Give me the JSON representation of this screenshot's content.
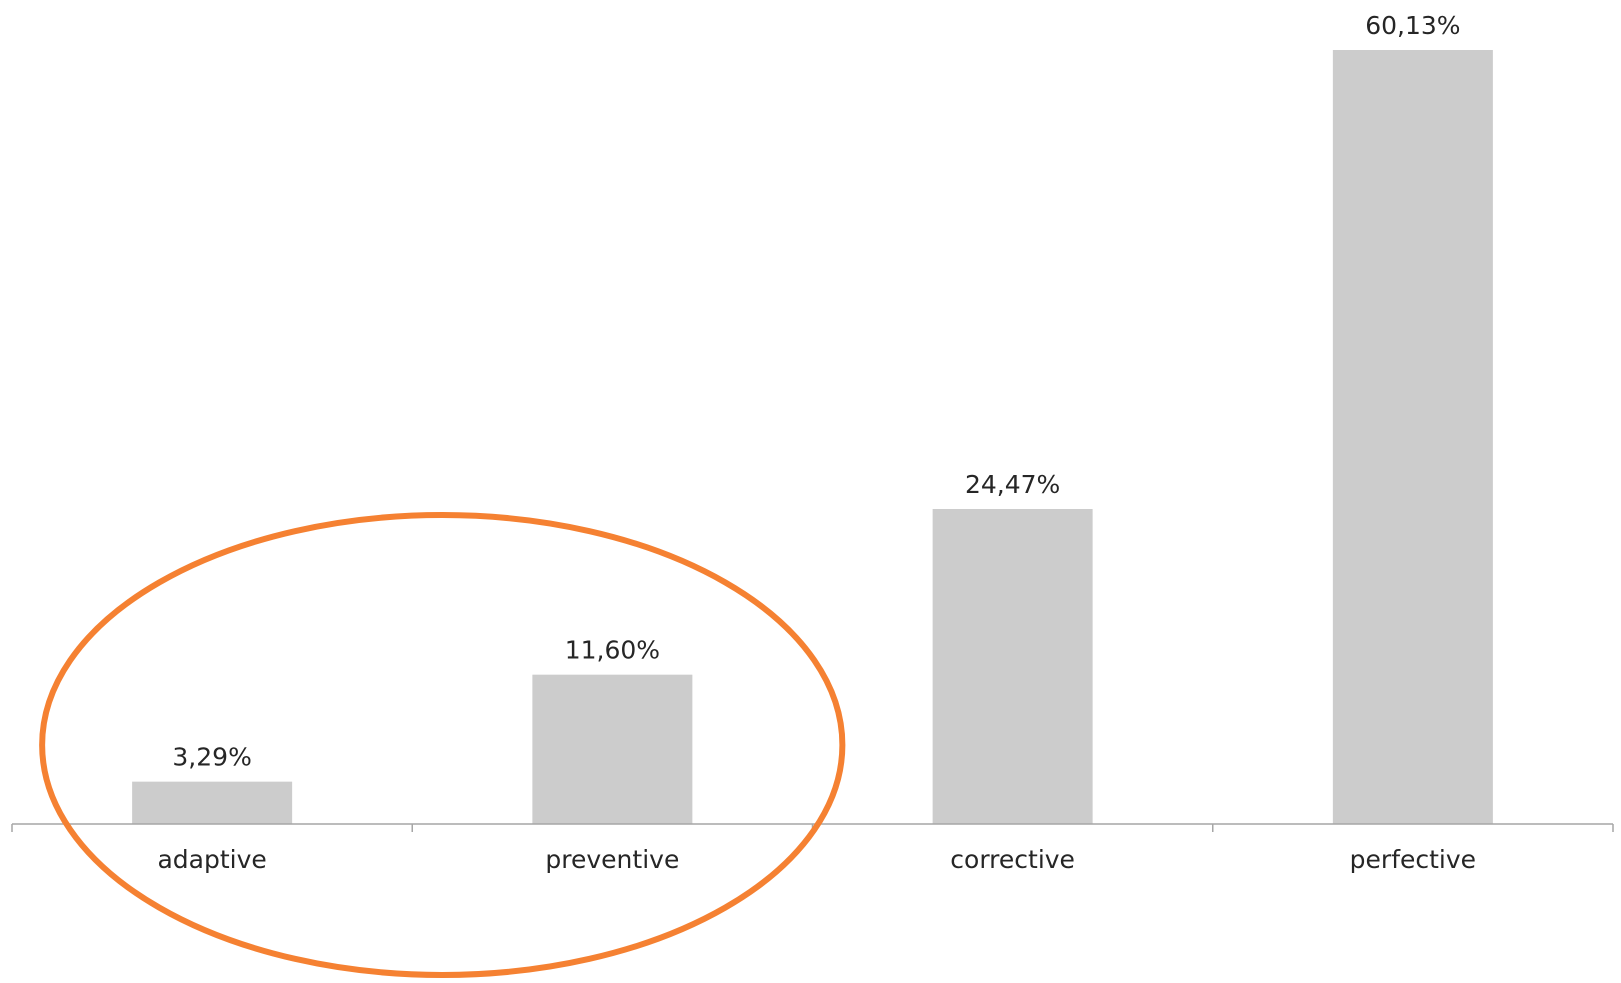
{
  "chart_data": {
    "type": "bar",
    "categories": [
      "adaptive",
      "preventive",
      "corrective",
      "perfective"
    ],
    "values": [
      3.29,
      11.6,
      24.47,
      60.13
    ],
    "data_labels": [
      "3,29%",
      "11,60%",
      "24,47%",
      "60,13%"
    ],
    "title": "",
    "xlabel": "",
    "ylabel": "",
    "ylim": [
      0,
      60.13
    ],
    "grid": false,
    "legend": "none",
    "y_axis_visible": false
  },
  "colors": {
    "bar": "#cccccc",
    "axis": "#a6a6a6",
    "text": "#262626",
    "highlight_ellipse": "#f58132"
  },
  "annotations": {
    "highlight": {
      "shape": "ellipse",
      "encloses": [
        "adaptive",
        "preventive"
      ]
    }
  }
}
